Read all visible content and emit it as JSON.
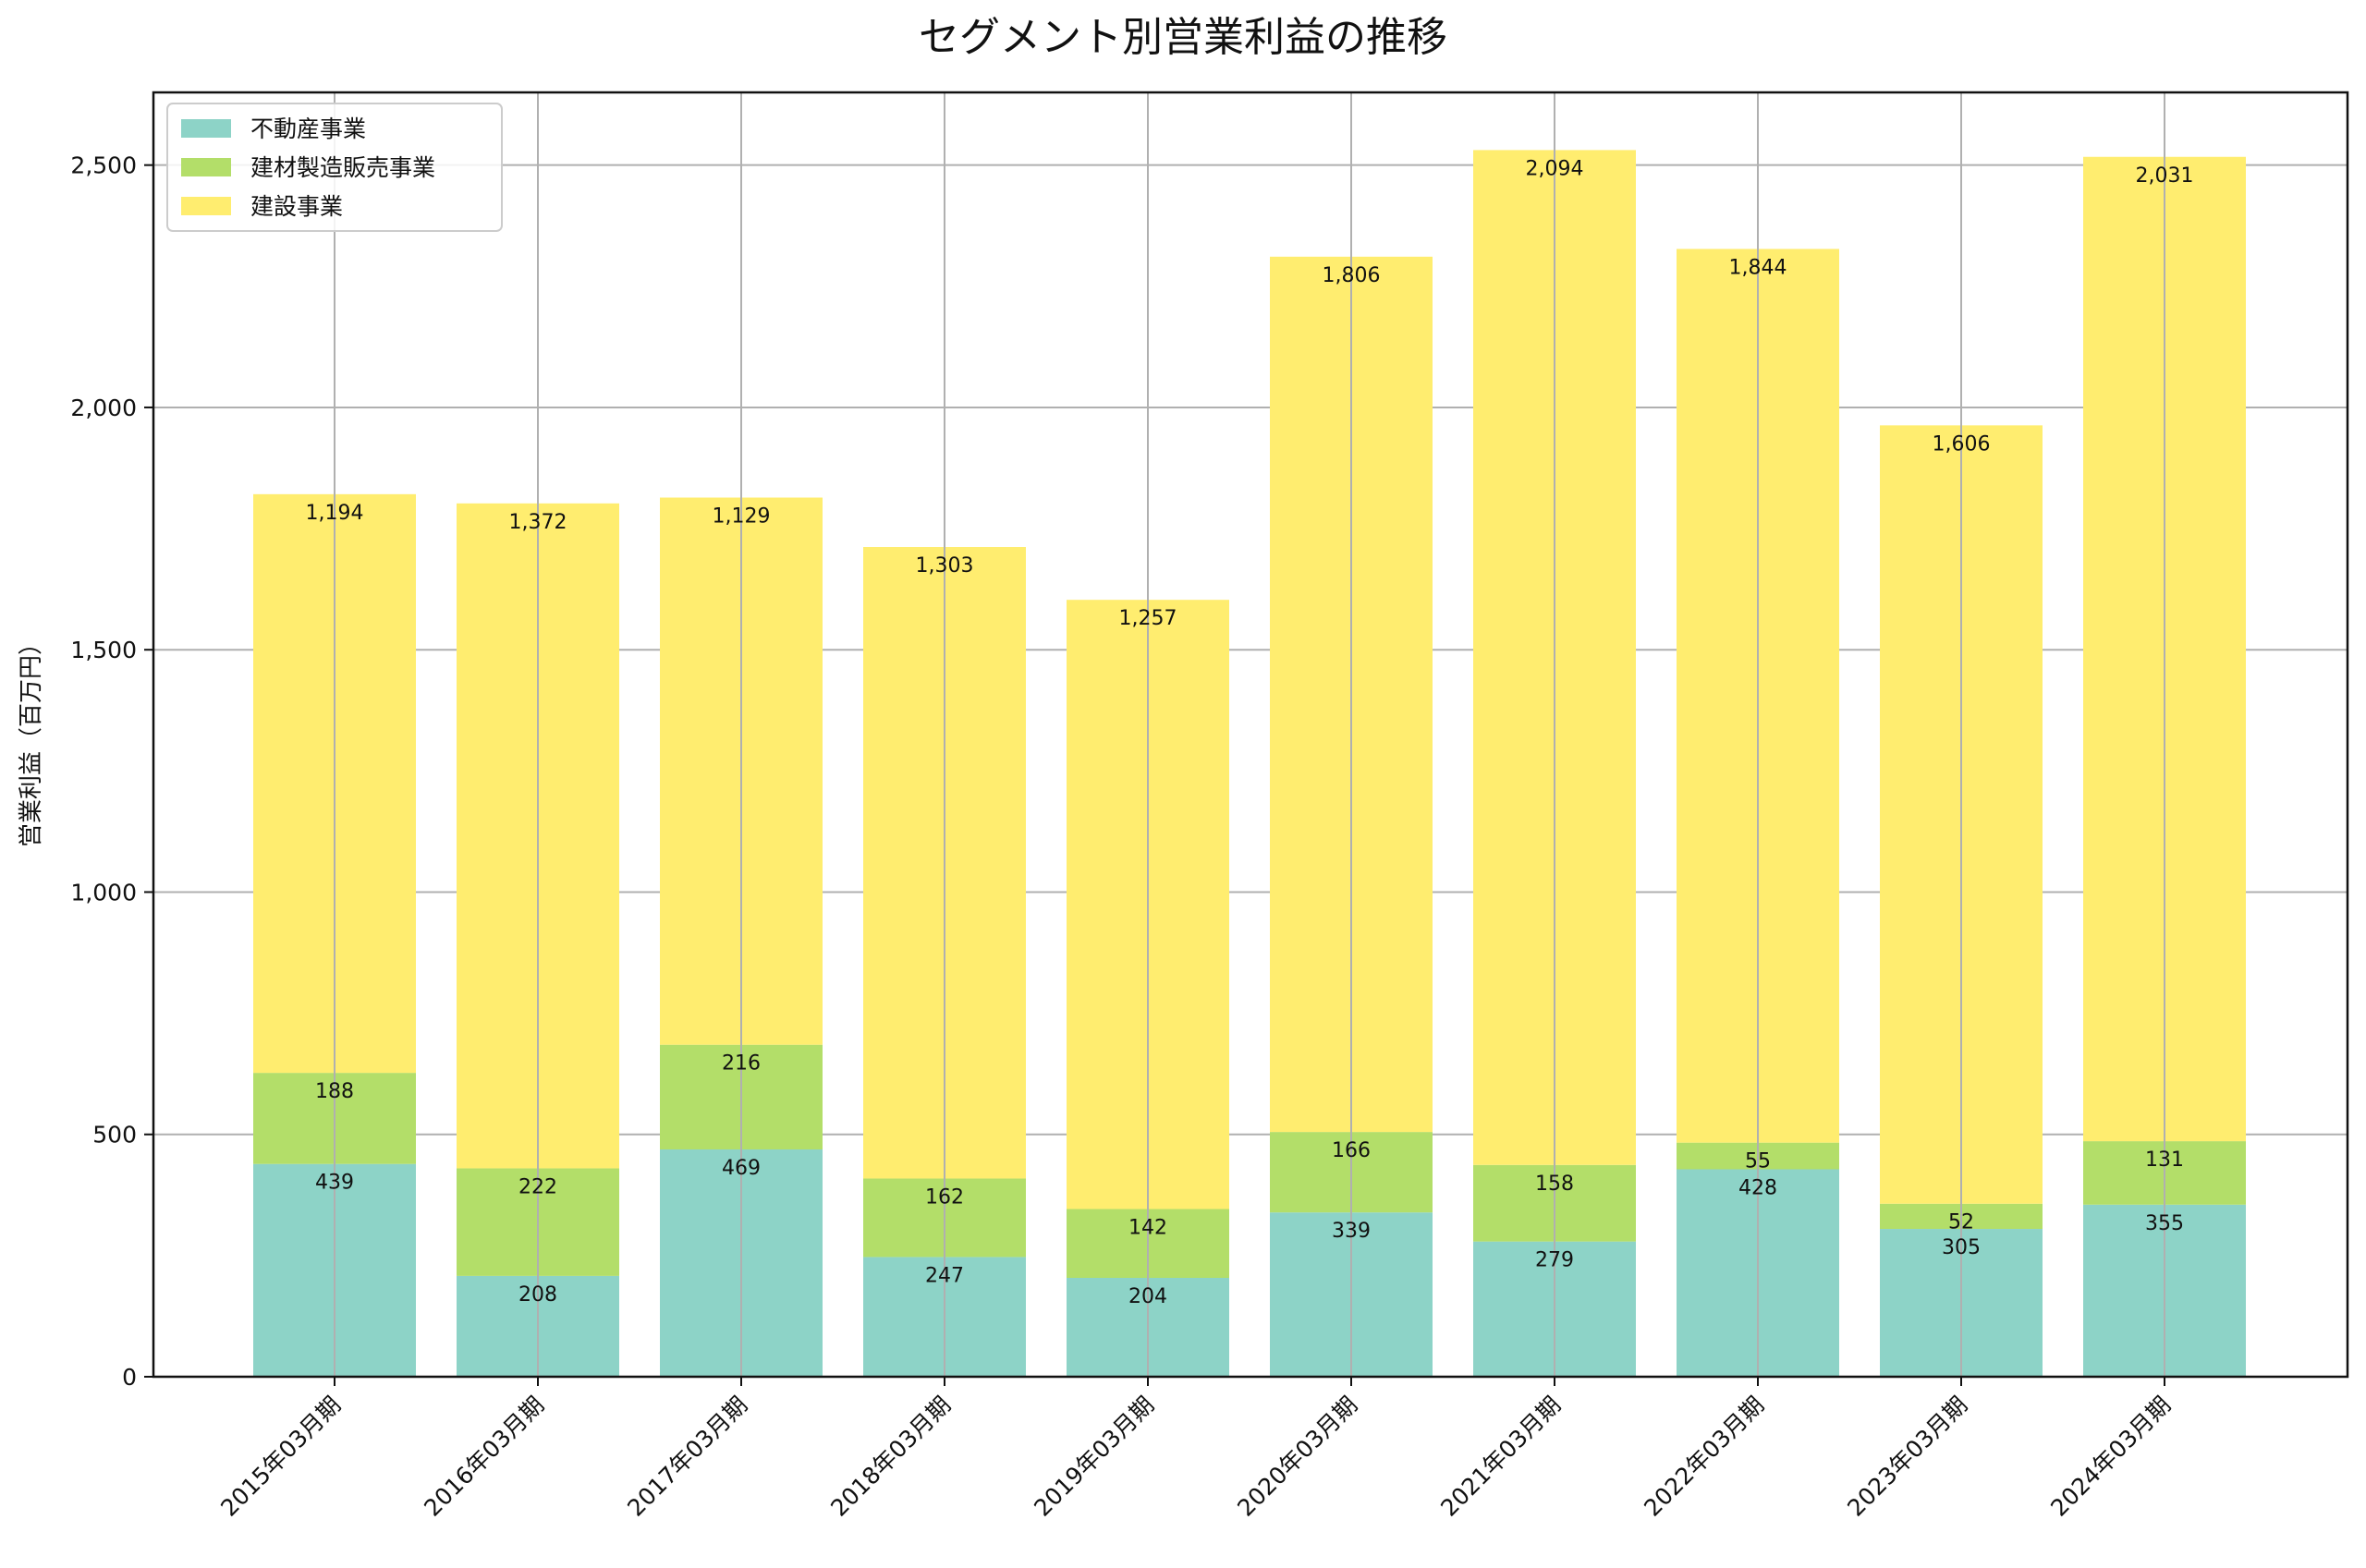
{
  "chart_data": {
    "type": "bar",
    "stacked": true,
    "title": "セグメント別営業利益の推移",
    "xlabel": "",
    "ylabel": "営業利益（百万円）",
    "ylim": [
      0,
      2650
    ],
    "yticks": [
      0,
      500,
      1000,
      1500,
      2000,
      2500
    ],
    "ytick_labels": [
      "0",
      "500",
      "1,000",
      "1,500",
      "2,000",
      "2,500"
    ],
    "grid": true,
    "legend_position": "top-left",
    "categories": [
      "2015年03月期",
      "2016年03月期",
      "2017年03月期",
      "2018年03月期",
      "2019年03月期",
      "2020年03月期",
      "2021年03月期",
      "2022年03月期",
      "2023年03月期",
      "2024年03月期"
    ],
    "series": [
      {
        "name": "不動産事業",
        "color": "#8dd3c7",
        "values": [
          439,
          208,
          469,
          247,
          204,
          339,
          279,
          428,
          305,
          355
        ],
        "labels": [
          "439",
          "208",
          "469",
          "247",
          "204",
          "339",
          "279",
          "428",
          "305",
          "355"
        ]
      },
      {
        "name": "建材製造販売事業",
        "color": "#b3de69",
        "values": [
          188,
          222,
          216,
          162,
          142,
          166,
          158,
          55,
          52,
          131
        ],
        "labels": [
          "188",
          "222",
          "216",
          "162",
          "142",
          "166",
          "158",
          "55",
          "52",
          "131"
        ]
      },
      {
        "name": "建設事業",
        "color": "#ffed6f",
        "values": [
          1194,
          1372,
          1129,
          1303,
          1257,
          1806,
          2094,
          1844,
          1606,
          2031
        ],
        "labels": [
          "1,194",
          "1,372",
          "1,129",
          "1,303",
          "1,257",
          "1,806",
          "2,094",
          "1,844",
          "1,606",
          "2,031"
        ]
      }
    ]
  }
}
